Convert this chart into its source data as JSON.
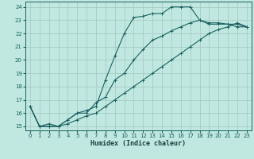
{
  "xlabel": "Humidex (Indice chaleur)",
  "ylabel": "",
  "bg_color": "#c0e8e0",
  "grid_color": "#a0c8c0",
  "line_color": "#1a6060",
  "xlim": [
    -0.5,
    23.5
  ],
  "ylim": [
    14.7,
    24.4
  ],
  "xticks": [
    0,
    1,
    2,
    3,
    4,
    5,
    6,
    7,
    8,
    9,
    10,
    11,
    12,
    13,
    14,
    15,
    16,
    17,
    18,
    19,
    20,
    21,
    22,
    23
  ],
  "yticks": [
    15,
    16,
    17,
    18,
    19,
    20,
    21,
    22,
    23,
    24
  ],
  "line1_x": [
    0,
    1,
    2,
    3,
    4,
    5,
    6,
    7,
    8,
    9,
    10,
    11,
    12,
    13,
    14,
    15,
    16,
    17,
    18,
    19,
    20,
    21,
    22,
    23
  ],
  "line1_y": [
    16.5,
    15.0,
    15.0,
    15.0,
    15.5,
    16.0,
    16.2,
    16.5,
    18.5,
    20.3,
    22.0,
    23.2,
    23.3,
    23.5,
    23.5,
    24.0,
    24.0,
    24.0,
    23.0,
    22.7,
    22.7,
    22.7,
    22.5,
    22.5
  ],
  "line2_x": [
    0,
    1,
    2,
    3,
    4,
    5,
    6,
    7,
    8,
    9,
    10,
    11,
    12,
    13,
    14,
    15,
    16,
    17,
    18,
    19,
    20,
    21,
    22,
    23
  ],
  "line2_y": [
    16.5,
    15.0,
    15.2,
    15.0,
    15.5,
    16.0,
    16.0,
    16.8,
    17.2,
    18.5,
    19.0,
    20.0,
    20.8,
    21.5,
    21.8,
    22.2,
    22.5,
    22.8,
    23.0,
    22.8,
    22.8,
    22.7,
    22.7,
    22.5
  ],
  "line3_x": [
    0,
    1,
    2,
    3,
    4,
    5,
    6,
    7,
    8,
    9,
    10,
    11,
    12,
    13,
    14,
    15,
    16,
    17,
    18,
    19,
    20,
    21,
    22,
    23
  ],
  "line3_y": [
    16.5,
    15.0,
    15.0,
    15.0,
    15.2,
    15.5,
    15.8,
    16.0,
    16.5,
    17.0,
    17.5,
    18.0,
    18.5,
    19.0,
    19.5,
    20.0,
    20.5,
    21.0,
    21.5,
    22.0,
    22.3,
    22.5,
    22.8,
    22.5
  ]
}
